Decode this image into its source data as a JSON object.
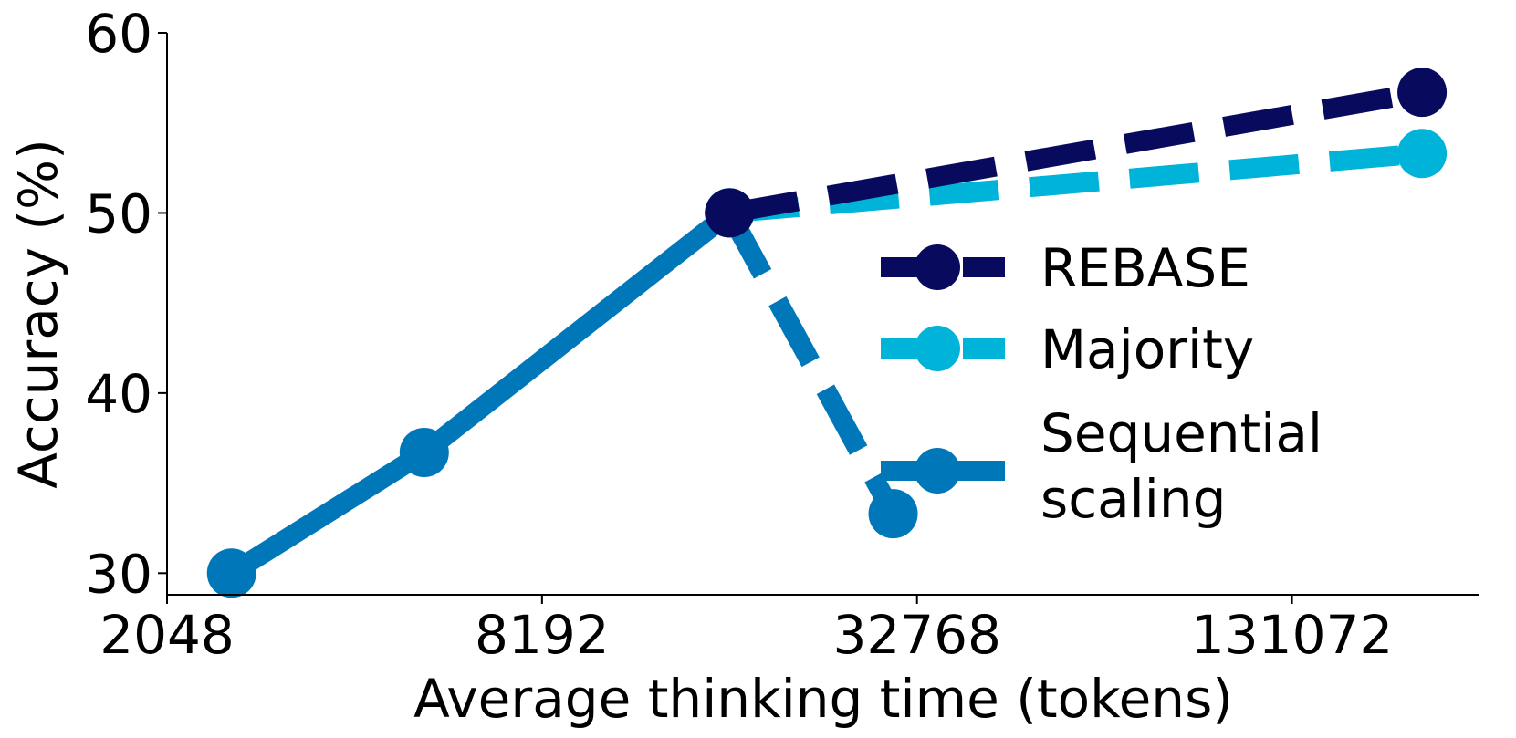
{
  "chart_data": {
    "type": "line",
    "xlabel": "Average thinking time (tokens)",
    "ylabel": "Accuracy (%)",
    "x_scale": "log2",
    "xlim": [
      2048,
      262144
    ],
    "ylim": [
      28.8,
      60
    ],
    "x_ticks": [
      2048,
      8192,
      32768,
      131072
    ],
    "x_tick_labels": [
      "2048",
      "8192",
      "32768",
      "131072"
    ],
    "y_ticks": [
      30,
      40,
      50,
      60
    ],
    "y_tick_labels": [
      "30",
      "40",
      "50",
      "60"
    ],
    "legend_position": "center-right",
    "series": [
      {
        "name": "REBASE",
        "color": "#080a5e",
        "line_style": "dashed",
        "points": [
          [
            16384,
            50.0
          ],
          [
            212000,
            56.7
          ]
        ]
      },
      {
        "name": "Majority",
        "color": "#00b3d9",
        "line_style": "dashed",
        "points": [
          [
            16384,
            50.0
          ],
          [
            212000,
            53.3
          ]
        ]
      },
      {
        "name": "Sequential\nscaling",
        "color": "#0077b8",
        "line_style": "solid",
        "points": [
          [
            2600,
            30.0
          ],
          [
            5300,
            36.7
          ],
          [
            16384,
            50.0
          ]
        ]
      },
      {
        "name": "Sequential\nscaling",
        "color": "#0077b8",
        "line_style": "dashed",
        "legend": false,
        "points": [
          [
            16384,
            50.0
          ],
          [
            30000,
            33.3
          ]
        ]
      }
    ]
  }
}
